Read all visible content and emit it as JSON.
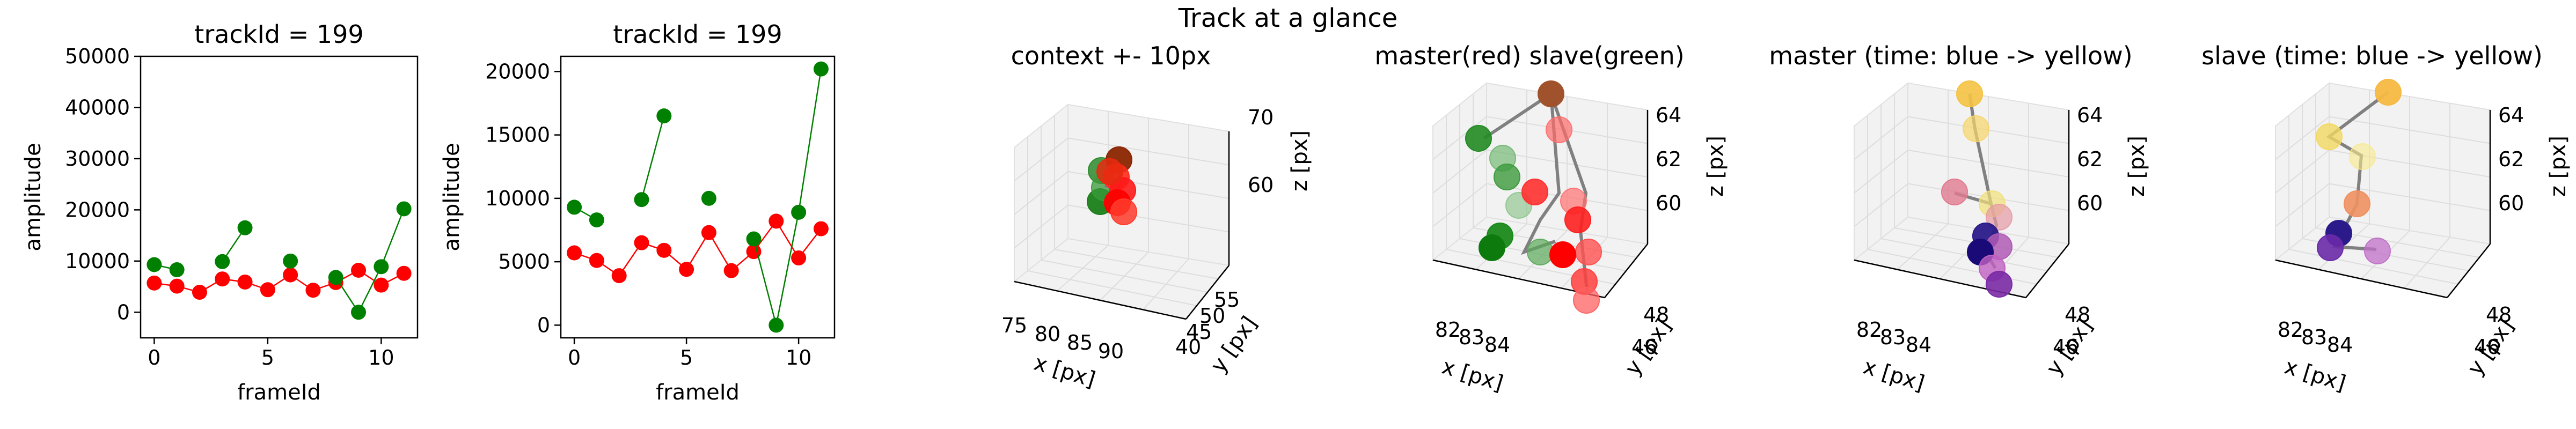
{
  "suptitle": "Track at a glance",
  "chart_data": [
    {
      "type": "scatter",
      "title": "trackId = 199",
      "xlabel": "frameId",
      "ylabel": "amplitude",
      "xlim": [
        -0.6,
        11.6
      ],
      "ylim": [
        -5000,
        50000
      ],
      "xticks": [
        "0",
        "5",
        "10"
      ],
      "yticks": [
        "0",
        "10000",
        "20000",
        "30000",
        "40000",
        "50000"
      ],
      "series": [
        {
          "color": "#ff0000",
          "line": "#ff0000",
          "points": [
            [
              0,
              5700
            ],
            [
              1,
              5100
            ],
            [
              2,
              3900
            ],
            [
              3,
              6500
            ],
            [
              4,
              5900
            ],
            [
              5,
              4400
            ],
            [
              6,
              7300
            ],
            [
              7,
              4300
            ],
            [
              8,
              5800
            ],
            [
              9,
              8200
            ],
            [
              10,
              5300
            ],
            [
              11,
              7600
            ]
          ],
          "segments": [
            [
              0,
              1,
              2,
              3,
              4,
              5,
              6,
              7,
              8,
              9,
              10,
              11
            ]
          ]
        },
        {
          "color": "#008000",
          "line": "#008000",
          "points": [
            [
              0,
              9300
            ],
            [
              1,
              8300
            ],
            [
              3,
              9900
            ],
            [
              4,
              16500
            ],
            [
              6,
              10000
            ],
            [
              8,
              6800
            ],
            [
              9,
              0
            ],
            [
              10,
              8900
            ],
            [
              11,
              20200
            ]
          ],
          "segments": [
            [
              0,
              1
            ],
            [
              3,
              4
            ],
            [
              8,
              9,
              10,
              11
            ]
          ]
        }
      ]
    },
    {
      "type": "scatter",
      "title": "trackId = 199",
      "xlabel": "frameId",
      "ylabel": "amplitude",
      "xlim": [
        -0.6,
        11.6
      ],
      "ylim": [
        -1000,
        21200
      ],
      "xticks": [
        "0",
        "5",
        "10"
      ],
      "yticks": [
        "0",
        "5000",
        "10000",
        "15000",
        "20000"
      ],
      "series": [
        {
          "color": "#ff0000",
          "line": "#ff0000",
          "points": [
            [
              0,
              5700
            ],
            [
              1,
              5100
            ],
            [
              2,
              3900
            ],
            [
              3,
              6500
            ],
            [
              4,
              5900
            ],
            [
              5,
              4400
            ],
            [
              6,
              7300
            ],
            [
              7,
              4300
            ],
            [
              8,
              5800
            ],
            [
              9,
              8200
            ],
            [
              10,
              5300
            ],
            [
              11,
              7600
            ]
          ],
          "segments": [
            [
              0,
              1,
              2,
              3,
              4,
              5,
              6,
              7,
              8,
              9,
              10,
              11
            ]
          ]
        },
        {
          "color": "#008000",
          "line": "#008000",
          "points": [
            [
              0,
              9300
            ],
            [
              1,
              8300
            ],
            [
              3,
              9900
            ],
            [
              4,
              16500
            ],
            [
              6,
              10000
            ],
            [
              8,
              6800
            ],
            [
              9,
              0
            ],
            [
              10,
              8900
            ],
            [
              11,
              20200
            ]
          ],
          "segments": [
            [
              0,
              1
            ],
            [
              3,
              4
            ],
            [
              8,
              9,
              10,
              11
            ]
          ]
        }
      ]
    },
    {
      "type": "scatter",
      "title": "context +- 10px",
      "xlabel": "x [px]",
      "ylabel": "y [px]",
      "zlabel": "z [px]",
      "xticks": [
        "75",
        "80",
        "85",
        "90"
      ],
      "yticks": [
        "40",
        "45",
        "50",
        "55"
      ],
      "zticks": [
        "60",
        "70"
      ],
      "points_green": [
        [
          84.3,
          48,
          62
        ],
        [
          84.2,
          47.5,
          58
        ],
        [
          84.6,
          47.8,
          60
        ]
      ],
      "points_red": [
        [
          83.4,
          48,
          64
        ],
        [
          83.6,
          47,
          63
        ],
        [
          83.2,
          47.6,
          61
        ],
        [
          83.8,
          46.9,
          60
        ],
        [
          83.5,
          47.2,
          62
        ],
        [
          83.1,
          46.5,
          59
        ]
      ]
    },
    {
      "type": "scatter",
      "title": "master(red) slave(green)",
      "xlabel": "x [px]",
      "ylabel": "y [px]",
      "zlabel": "z [px]",
      "xticks": [
        "82",
        "83",
        "84"
      ],
      "yticks": [
        "46",
        "48"
      ],
      "zticks": [
        "60",
        "62",
        "64"
      ]
    },
    {
      "type": "scatter",
      "title": "master (time: blue -> yellow)",
      "xlabel": "x [px]",
      "ylabel": "y [px]",
      "zlabel": "z [px]",
      "xticks": [
        "82",
        "83",
        "84"
      ],
      "yticks": [
        "46",
        "48"
      ],
      "zticks": [
        "60",
        "62",
        "64"
      ]
    },
    {
      "type": "scatter",
      "title": "slave (time: blue -> yellow)",
      "xlabel": "x [px]",
      "ylabel": "y [px]",
      "zlabel": "z [px]",
      "xticks": [
        "82",
        "83",
        "84"
      ],
      "yticks": [
        "46",
        "48"
      ],
      "zticks": [
        "60",
        "62",
        "64"
      ]
    }
  ]
}
